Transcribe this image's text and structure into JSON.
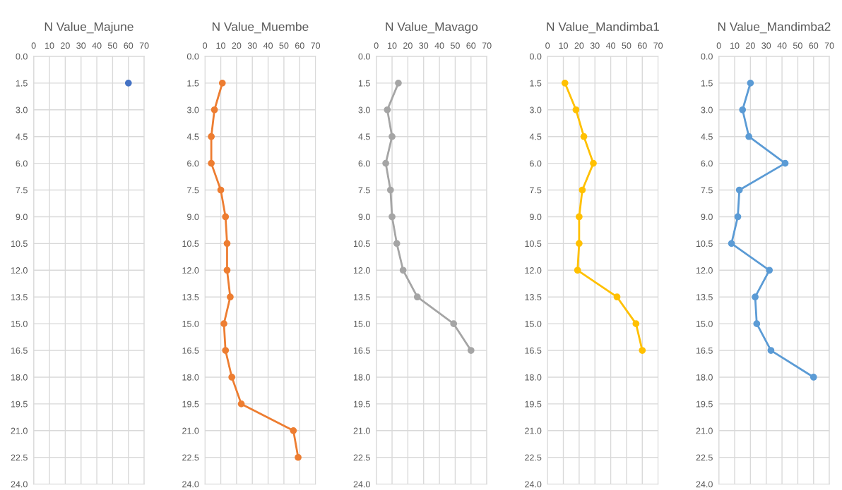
{
  "chart_data": [
    {
      "type": "line",
      "title": "N Value_Majune",
      "marker": "circle",
      "grid": true,
      "xlim": [
        0,
        70
      ],
      "xticks": [
        0,
        10,
        20,
        30,
        40,
        50,
        60,
        70
      ],
      "ylim": [
        24,
        0
      ],
      "yticks": [
        {
          "value": 0,
          "label": "0.0"
        },
        1.5,
        {
          "value": 3,
          "label": "3.0"
        },
        4.5,
        {
          "value": 6,
          "label": "6.0"
        },
        7.5,
        {
          "value": 9,
          "label": "9.0"
        },
        10.5,
        {
          "value": 12,
          "label": "12.0"
        },
        13.5,
        {
          "value": 15,
          "label": "15.0"
        },
        16.5,
        {
          "value": 18,
          "label": "18.0"
        },
        19.5,
        {
          "value": 21,
          "label": "21.0"
        },
        22.5,
        {
          "value": 24,
          "label": "24.0"
        }
      ],
      "series": [
        {
          "color": "#4472c4",
          "x": [
            60
          ],
          "values": [
            1.5
          ]
        }
      ]
    },
    {
      "type": "line",
      "title": "N Value_Muembe",
      "marker": "circle",
      "grid": true,
      "xlim": [
        0,
        70
      ],
      "xticks": [
        0,
        10,
        20,
        30,
        40,
        50,
        60,
        70
      ],
      "ylim": [
        24,
        0
      ],
      "yticks": [
        {
          "value": 0,
          "label": "0.0"
        },
        1.5,
        {
          "value": 3,
          "label": "3.0"
        },
        4.5,
        {
          "value": 6,
          "label": "6.0"
        },
        7.5,
        {
          "value": 9,
          "label": "9.0"
        },
        10.5,
        {
          "value": 12,
          "label": "12.0"
        },
        13.5,
        {
          "value": 15,
          "label": "15.0"
        },
        16.5,
        {
          "value": 18,
          "label": "18.0"
        },
        19.5,
        {
          "value": 21,
          "label": "21.0"
        },
        22.5,
        {
          "value": 24,
          "label": "24.0"
        }
      ],
      "series": [
        {
          "color": "#ed7d31",
          "x": [
            11,
            6,
            4,
            4,
            10,
            13,
            14,
            14,
            16,
            12,
            13,
            17,
            23,
            56,
            59
          ],
          "values": [
            1.5,
            3,
            4.5,
            6,
            7.5,
            9,
            10.5,
            12,
            13.5,
            15,
            16.5,
            18,
            19.5,
            21,
            22.5
          ]
        }
      ]
    },
    {
      "type": "line",
      "title": "N Value_Mavago",
      "marker": "circle",
      "grid": true,
      "xlim": [
        0,
        70
      ],
      "xticks": [
        0,
        10,
        20,
        30,
        40,
        50,
        60,
        70
      ],
      "ylim": [
        24,
        0
      ],
      "yticks": [
        {
          "value": 0,
          "label": "0.0"
        },
        1.5,
        {
          "value": 3,
          "label": "3.0"
        },
        4.5,
        {
          "value": 6,
          "label": "6.0"
        },
        7.5,
        {
          "value": 9,
          "label": "9.0"
        },
        10.5,
        {
          "value": 12,
          "label": "12.0"
        },
        13.5,
        {
          "value": 15,
          "label": "15.0"
        },
        16.5,
        {
          "value": 18,
          "label": "18.0"
        },
        19.5,
        {
          "value": 21,
          "label": "21.0"
        },
        22.5,
        {
          "value": 24,
          "label": "24.0"
        }
      ],
      "series": [
        {
          "color": "#a5a5a5",
          "x": [
            14,
            7,
            10,
            6,
            9,
            10,
            13,
            17,
            26,
            49,
            60
          ],
          "values": [
            1.5,
            3,
            4.5,
            6,
            7.5,
            9,
            10.5,
            12,
            13.5,
            15,
            16.5
          ]
        }
      ]
    },
    {
      "type": "line",
      "title": "N Value_Mandimba1",
      "marker": "circle",
      "grid": true,
      "xlim": [
        0,
        70
      ],
      "xticks": [
        0,
        10,
        20,
        30,
        40,
        50,
        60,
        70
      ],
      "ylim": [
        24,
        0
      ],
      "yticks": [
        {
          "value": 0,
          "label": "0.0"
        },
        1.5,
        {
          "value": 3,
          "label": "3.0"
        },
        4.5,
        {
          "value": 6,
          "label": "6.0"
        },
        7.5,
        {
          "value": 9,
          "label": "9.0"
        },
        10.5,
        {
          "value": 12,
          "label": "12.0"
        },
        13.5,
        {
          "value": 15,
          "label": "15.0"
        },
        16.5,
        {
          "value": 18,
          "label": "18.0"
        },
        19.5,
        {
          "value": 21,
          "label": "21.0"
        },
        22.5,
        {
          "value": 24,
          "label": "24.0"
        }
      ],
      "series": [
        {
          "color": "#ffc000",
          "x": [
            11,
            18,
            23,
            29,
            22,
            20,
            20,
            19,
            44,
            56,
            60
          ],
          "values": [
            1.5,
            3,
            4.5,
            6,
            7.5,
            9,
            10.5,
            12,
            13.5,
            15,
            16.5
          ]
        }
      ]
    },
    {
      "type": "line",
      "title": "N Value_Mandimba2",
      "marker": "circle",
      "grid": true,
      "xlim": [
        0,
        70
      ],
      "xticks": [
        0,
        10,
        20,
        30,
        40,
        50,
        60,
        70
      ],
      "ylim": [
        24,
        0
      ],
      "yticks": [
        {
          "value": 0,
          "label": "0.0"
        },
        1.5,
        {
          "value": 3,
          "label": "3.0"
        },
        4.5,
        {
          "value": 6,
          "label": "6.0"
        },
        7.5,
        {
          "value": 9,
          "label": "9.0"
        },
        10.5,
        {
          "value": 12,
          "label": "12.0"
        },
        13.5,
        {
          "value": 15,
          "label": "15.0"
        },
        16.5,
        {
          "value": 18,
          "label": "18.0"
        },
        19.5,
        {
          "value": 21,
          "label": "21.0"
        },
        22.5,
        {
          "value": 24,
          "label": "24.0"
        }
      ],
      "series": [
        {
          "color": "#5b9bd5",
          "x": [
            20,
            15,
            19,
            42,
            13,
            12,
            8,
            32,
            23,
            24,
            33,
            60
          ],
          "values": [
            1.5,
            3,
            4.5,
            6,
            7.5,
            9,
            10.5,
            12,
            13.5,
            15,
            16.5,
            18
          ]
        }
      ]
    }
  ]
}
